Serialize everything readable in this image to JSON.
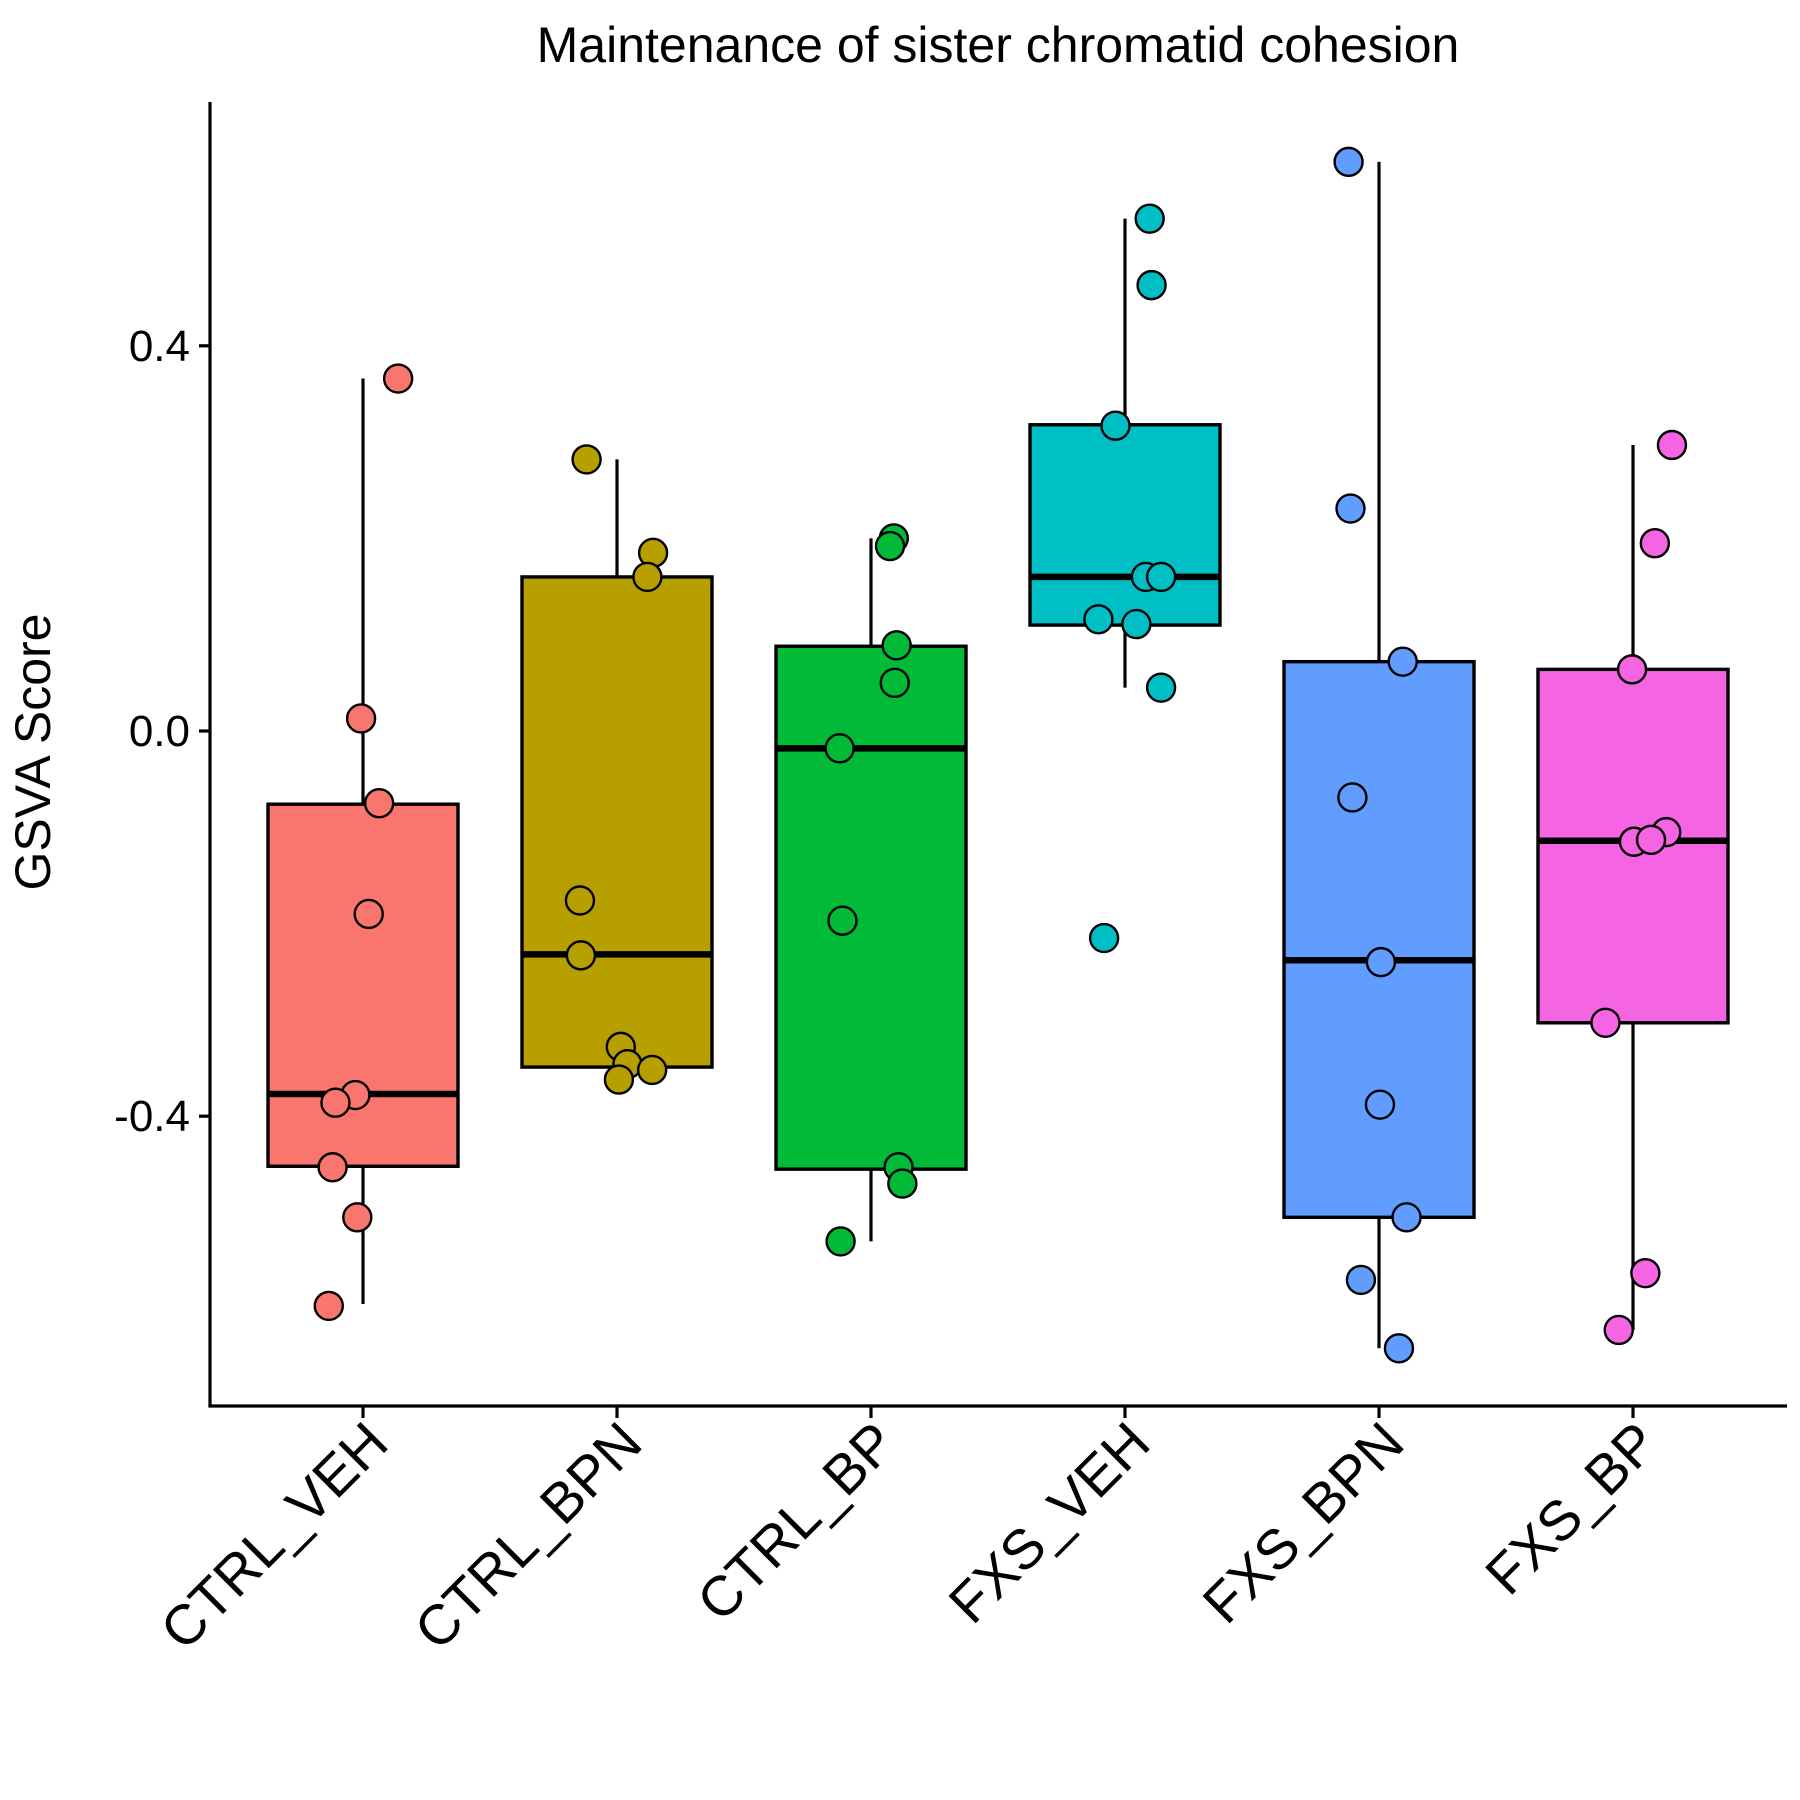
{
  "chart_data": {
    "type": "box",
    "title": "Maintenance of sister chromatid cohesion",
    "xlabel": "",
    "ylabel": "GSVA Score",
    "ylim": [
      -0.7,
      0.65
    ],
    "yticks": [
      -0.4,
      0.0,
      0.4
    ],
    "ytick_labels": [
      "-0.4",
      "0.0",
      "0.4"
    ],
    "grid": false,
    "legend": "none",
    "categories": [
      "CTRL_VEH",
      "CTRL_BPN",
      "CTRL_BP",
      "FXS_VEH",
      "FXS_BPN",
      "FXS_BP"
    ],
    "groups": [
      {
        "name": "CTRL_VEH",
        "color": "#F8766D",
        "box": {
          "lower_whisker": -0.595,
          "q1": -0.452,
          "median": -0.377,
          "q3": -0.076,
          "upper_whisker": 0.366
        },
        "points": [
          {
            "jitter": 0.37,
            "y": 0.366
          },
          {
            "jitter": -0.02,
            "y": 0.013
          },
          {
            "jitter": 0.17,
            "y": -0.075
          },
          {
            "jitter": 0.06,
            "y": -0.19
          },
          {
            "jitter": -0.08,
            "y": -0.378
          },
          {
            "jitter": -0.29,
            "y": -0.386
          },
          {
            "jitter": -0.32,
            "y": -0.453
          },
          {
            "jitter": -0.06,
            "y": -0.505
          },
          {
            "jitter": -0.36,
            "y": -0.597
          }
        ]
      },
      {
        "name": "CTRL_BPN",
        "color": "#B79F00",
        "box": {
          "lower_whisker": -0.349,
          "q1": -0.349,
          "median": -0.232,
          "q3": 0.16,
          "upper_whisker": 0.282
        },
        "points": [
          {
            "jitter": -0.32,
            "y": 0.282
          },
          {
            "jitter": 0.38,
            "y": 0.185
          },
          {
            "jitter": 0.32,
            "y": 0.16
          },
          {
            "jitter": -0.39,
            "y": -0.176
          },
          {
            "jitter": -0.38,
            "y": -0.233
          },
          {
            "jitter": 0.04,
            "y": -0.328
          },
          {
            "jitter": 0.11,
            "y": -0.346
          },
          {
            "jitter": 0.37,
            "y": -0.352
          },
          {
            "jitter": 0.02,
            "y": -0.362
          }
        ]
      },
      {
        "name": "CTRL_BP",
        "color": "#00BA38",
        "box": {
          "lower_whisker": -0.53,
          "q1": -0.455,
          "median": -0.018,
          "q3": 0.088,
          "upper_whisker": 0.2
        },
        "points": [
          {
            "jitter": 0.24,
            "y": 0.2
          },
          {
            "jitter": 0.2,
            "y": 0.192
          },
          {
            "jitter": 0.27,
            "y": 0.089
          },
          {
            "jitter": 0.25,
            "y": 0.05
          },
          {
            "jitter": -0.33,
            "y": -0.018
          },
          {
            "jitter": -0.3,
            "y": -0.197
          },
          {
            "jitter": 0.29,
            "y": -0.453
          },
          {
            "jitter": 0.33,
            "y": -0.47
          },
          {
            "jitter": -0.32,
            "y": -0.53
          }
        ]
      },
      {
        "name": "FXS_VEH",
        "color": "#00BFC4",
        "box": {
          "lower_whisker": 0.045,
          "q1": 0.11,
          "median": 0.16,
          "q3": 0.318,
          "upper_whisker": 0.532
        },
        "points": [
          {
            "jitter": 0.26,
            "y": 0.532
          },
          {
            "jitter": 0.28,
            "y": 0.463
          },
          {
            "jitter": -0.1,
            "y": 0.317
          },
          {
            "jitter": 0.22,
            "y": 0.16
          },
          {
            "jitter": 0.38,
            "y": 0.16
          },
          {
            "jitter": -0.28,
            "y": 0.116
          },
          {
            "jitter": 0.12,
            "y": 0.111
          },
          {
            "jitter": 0.38,
            "y": 0.045
          },
          {
            "jitter": -0.22,
            "y": -0.215
          }
        ]
      },
      {
        "name": "FXS_BPN",
        "color": "#619CFF",
        "box": {
          "lower_whisker": -0.641,
          "q1": -0.505,
          "median": -0.238,
          "q3": 0.072,
          "upper_whisker": 0.591
        },
        "points": [
          {
            "jitter": -0.32,
            "y": 0.591
          },
          {
            "jitter": -0.3,
            "y": 0.231
          },
          {
            "jitter": 0.25,
            "y": 0.072
          },
          {
            "jitter": -0.28,
            "y": -0.069
          },
          {
            "jitter": 0.02,
            "y": -0.24
          },
          {
            "jitter": 0.01,
            "y": -0.388
          },
          {
            "jitter": 0.29,
            "y": -0.505
          },
          {
            "jitter": -0.19,
            "y": -0.57
          },
          {
            "jitter": 0.21,
            "y": -0.641
          }
        ]
      },
      {
        "name": "FXS_BP",
        "color": "#F564E3",
        "box": {
          "lower_whisker": -0.622,
          "q1": -0.303,
          "median": -0.114,
          "q3": 0.064,
          "upper_whisker": 0.297
        },
        "points": [
          {
            "jitter": 0.41,
            "y": 0.297
          },
          {
            "jitter": 0.23,
            "y": 0.195
          },
          {
            "jitter": -0.01,
            "y": 0.064
          },
          {
            "jitter": 0.35,
            "y": -0.105
          },
          {
            "jitter": 0.01,
            "y": -0.115
          },
          {
            "jitter": 0.19,
            "y": -0.113
          },
          {
            "jitter": -0.29,
            "y": -0.303
          },
          {
            "jitter": 0.13,
            "y": -0.563
          },
          {
            "jitter": -0.15,
            "y": -0.622
          }
        ]
      }
    ]
  }
}
